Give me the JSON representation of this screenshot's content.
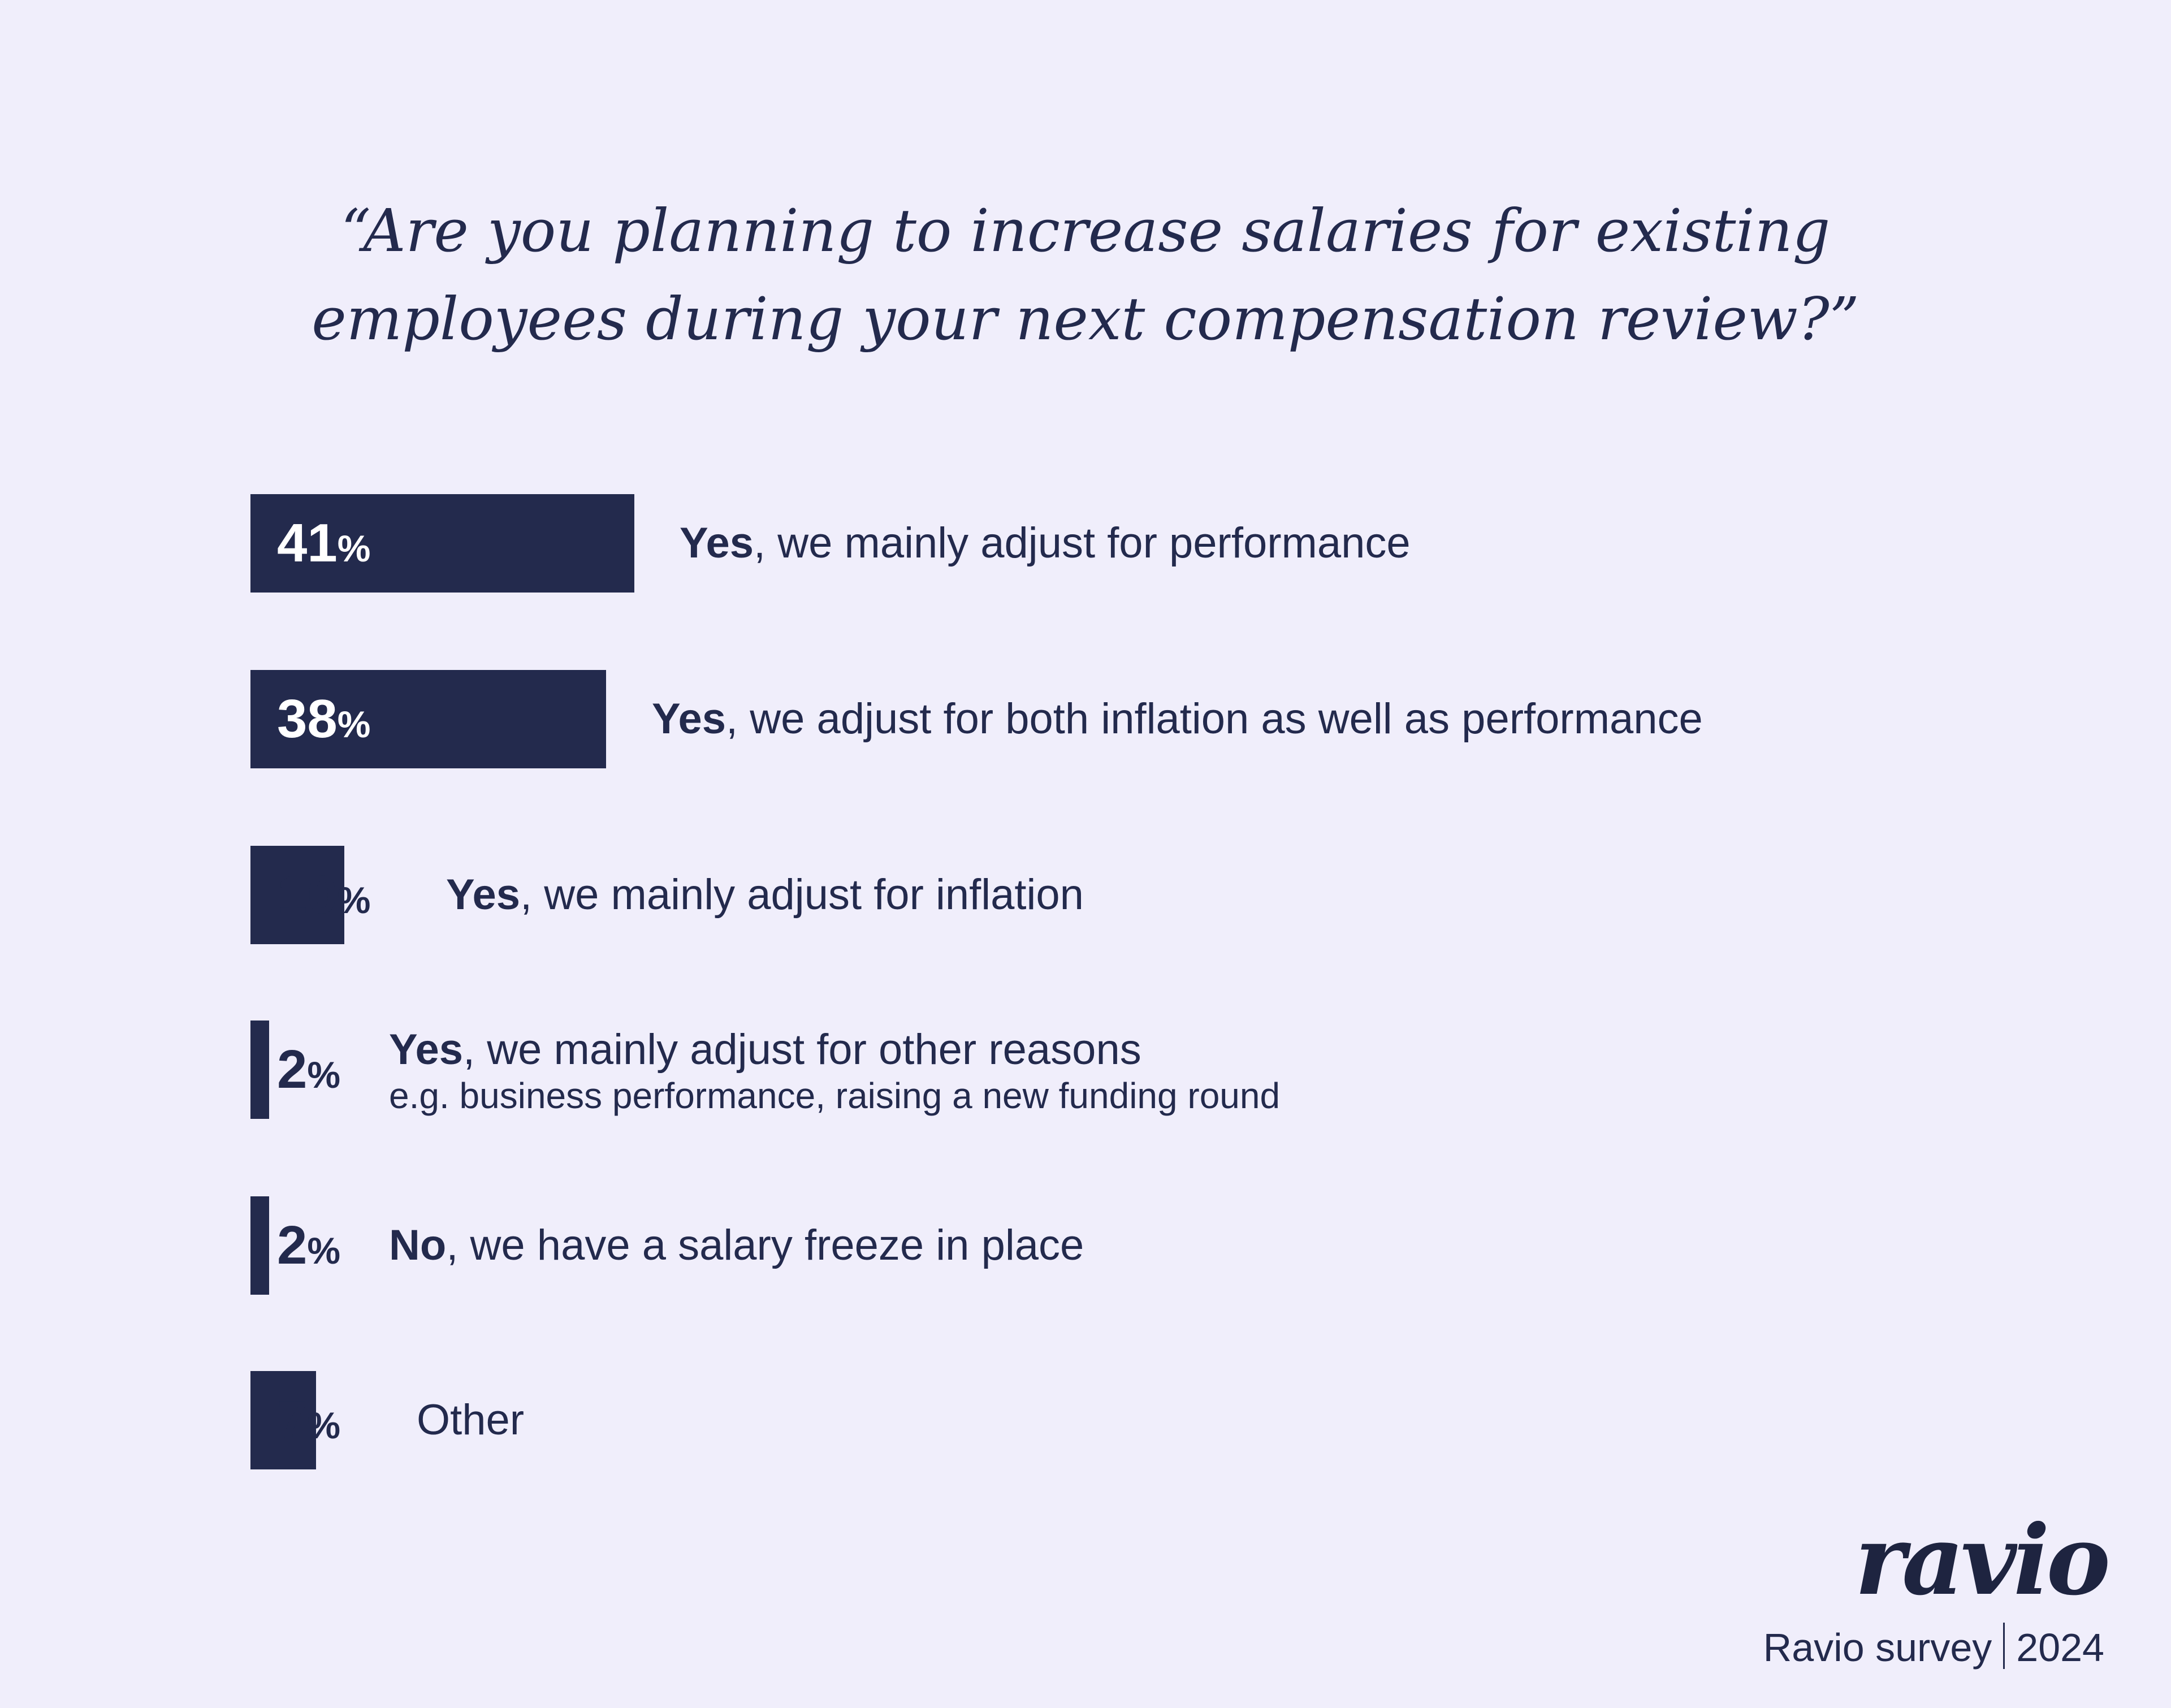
{
  "chart_data": {
    "type": "bar",
    "orientation": "horizontal",
    "title": "“Are you planning to increase salaries for existing employees during your next compensation review?”",
    "title_lines": [
      "“Are you planning to increase salaries for existing",
      "employees during your next compensation review?”"
    ],
    "unit": "%",
    "bar_color": "#232a4d",
    "background": "#f0eefb",
    "categories": [
      {
        "bold": "Yes",
        "rest": ", we mainly adjust for performance",
        "sub": ""
      },
      {
        "bold": "Yes",
        "rest": ", we adjust for both inflation as well as performance",
        "sub": ""
      },
      {
        "bold": "Yes",
        "rest": ", we mainly adjust for inflation",
        "sub": ""
      },
      {
        "bold": "Yes",
        "rest": ", we mainly adjust for other reasons",
        "sub": "e.g. business performance, raising a new funding round"
      },
      {
        "bold": "No",
        "rest": ", we have a salary freeze in place",
        "sub": ""
      },
      {
        "bold": "",
        "rest": "Other",
        "sub": ""
      }
    ],
    "values": [
      41,
      38,
      10,
      2,
      2,
      7
    ],
    "value_labels": [
      "41",
      "38",
      "10",
      "2",
      "2",
      "7"
    ],
    "grid": false,
    "legend": "none"
  },
  "footer": {
    "logo": "ravio",
    "source": "Ravio survey",
    "year": "2024"
  }
}
